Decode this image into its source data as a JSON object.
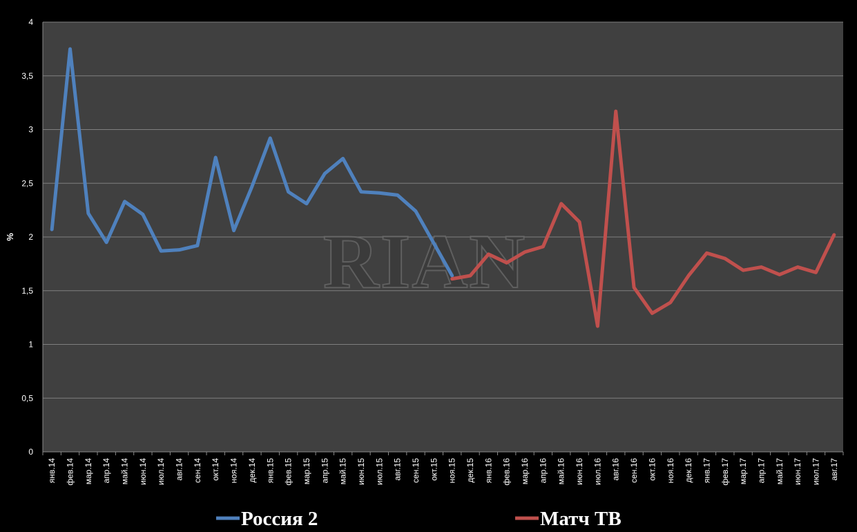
{
  "watermark": "RIAN",
  "colors": {
    "background": "#000000",
    "plot_background": "#404040",
    "gridline": "#7f7f7f",
    "rossiya2": "#4f81bd",
    "match_tv": "#c0504d"
  },
  "chart_data": {
    "type": "line",
    "ylabel": "%",
    "xlabel": "",
    "ylim": [
      0,
      4
    ],
    "yticks": [
      0,
      0.5,
      1,
      1.5,
      2,
      2.5,
      3,
      3.5,
      4
    ],
    "ytick_labels": [
      "0",
      "0,5",
      "1",
      "1,5",
      "2",
      "2,5",
      "3",
      "3,5",
      "4"
    ],
    "grid": true,
    "legend_position": "bottom",
    "categories": [
      "янв.14",
      "фев.14",
      "мар.14",
      "апр.14",
      "май.14",
      "июн.14",
      "июл.14",
      "авг.14",
      "сен.14",
      "окт.14",
      "ноя.14",
      "дек.14",
      "янв.15",
      "фев.15",
      "мар.15",
      "апр.15",
      "май.15",
      "июн.15",
      "июл.15",
      "авг.15",
      "сен.15",
      "окт.15",
      "ноя.15",
      "дек.15",
      "янв.16",
      "фев.16",
      "мар.16",
      "апр.16",
      "май.16",
      "июн.16",
      "июл.16",
      "авг.16",
      "сен.16",
      "окт.16",
      "ноя.16",
      "дек.16",
      "янв.17",
      "фев.17",
      "мар.17",
      "апр.17",
      "май.17",
      "июн.17",
      "июл.17",
      "авг.17"
    ],
    "series": [
      {
        "name": "Россия 2",
        "color": "#4f81bd",
        "values": [
          2.07,
          3.75,
          2.22,
          1.95,
          2.33,
          2.21,
          1.87,
          1.88,
          1.92,
          2.74,
          2.06,
          2.47,
          2.92,
          2.42,
          2.31,
          2.59,
          2.73,
          2.42,
          2.41,
          2.39,
          2.24,
          1.94,
          1.64,
          null,
          null,
          null,
          null,
          null,
          null,
          null,
          null,
          null,
          null,
          null,
          null,
          null,
          null,
          null,
          null,
          null,
          null,
          null,
          null,
          null
        ]
      },
      {
        "name": "Матч ТВ",
        "color": "#c0504d",
        "values": [
          null,
          null,
          null,
          null,
          null,
          null,
          null,
          null,
          null,
          null,
          null,
          null,
          null,
          null,
          null,
          null,
          null,
          null,
          null,
          null,
          null,
          null,
          1.61,
          1.64,
          1.84,
          1.76,
          1.86,
          1.91,
          2.31,
          2.14,
          1.17,
          3.17,
          1.53,
          1.29,
          1.39,
          1.64,
          1.85,
          1.8,
          1.69,
          1.72,
          1.65,
          1.72,
          1.67,
          2.02
        ]
      }
    ]
  }
}
